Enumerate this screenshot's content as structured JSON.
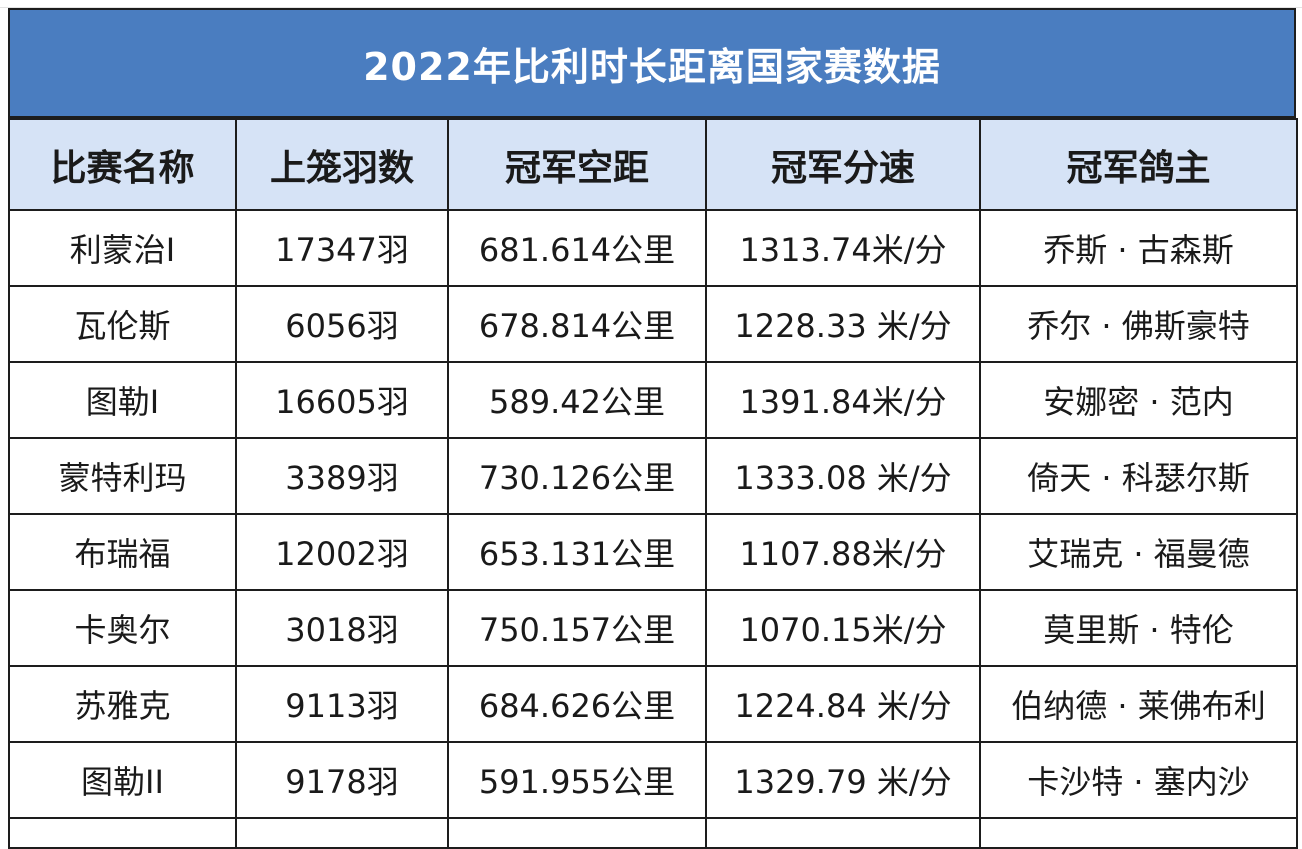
{
  "table": {
    "title": "2022年比利时长距离国家赛数据",
    "headers": [
      "比赛名称",
      "上笼羽数",
      "冠军空距",
      "冠军分速",
      "冠军鸽主"
    ],
    "rows": [
      [
        "利蒙治I",
        "17347羽",
        "681.614公里",
        "1313.74米/分",
        "乔斯 · 古森斯"
      ],
      [
        "瓦伦斯",
        "6056羽",
        "678.814公里",
        "1228.33 米/分",
        "乔尔 · 佛斯豪特"
      ],
      [
        "图勒I",
        "16605羽",
        "589.42公里",
        "1391.84米/分",
        "安娜密 · 范内"
      ],
      [
        "蒙特利玛",
        "3389羽",
        "730.126公里",
        "1333.08 米/分",
        "倚天 · 科瑟尔斯"
      ],
      [
        "布瑞福",
        "12002羽",
        "653.131公里",
        "1107.88米/分",
        "艾瑞克 · 福曼德"
      ],
      [
        "卡奥尔",
        "3018羽",
        "750.157公里",
        "1070.15米/分",
        "莫里斯 · 特伦"
      ],
      [
        "苏雅克",
        "9113羽",
        "684.626公里",
        "1224.84 米/分",
        "伯纳德 · 莱佛布利"
      ],
      [
        "图勒II",
        "9178羽",
        "591.955公里",
        "1329.79 米/分",
        "卡沙特 · 塞内沙"
      ]
    ]
  },
  "colors": {
    "title_band": "#4a7dc0",
    "header_row": "#d6e3f6",
    "border": "#1d1d1d"
  }
}
